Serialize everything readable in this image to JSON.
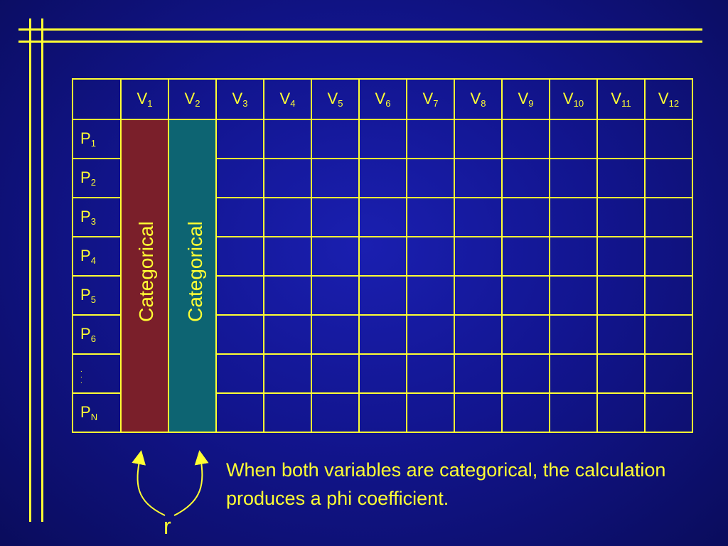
{
  "columns": [
    {
      "base": "V",
      "sub": "1"
    },
    {
      "base": "V",
      "sub": "2"
    },
    {
      "base": "V",
      "sub": "3"
    },
    {
      "base": "V",
      "sub": "4"
    },
    {
      "base": "V",
      "sub": "5"
    },
    {
      "base": "V",
      "sub": "6"
    },
    {
      "base": "V",
      "sub": "7"
    },
    {
      "base": "V",
      "sub": "8"
    },
    {
      "base": "V",
      "sub": "9"
    },
    {
      "base": "V",
      "sub": "10"
    },
    {
      "base": "V",
      "sub": "11"
    },
    {
      "base": "V",
      "sub": "12"
    }
  ],
  "rows": [
    {
      "base": "P",
      "sub": "1"
    },
    {
      "base": "P",
      "sub": "2"
    },
    {
      "base": "P",
      "sub": "3"
    },
    {
      "base": "P",
      "sub": "4"
    },
    {
      "base": "P",
      "sub": "5"
    },
    {
      "base": "P",
      "sub": "6"
    },
    {
      "base": ".",
      "sub": "",
      "ellipsis": true
    },
    {
      "base": "P",
      "sub": "N"
    }
  ],
  "highlight": {
    "col1_label": "Categorical",
    "col2_label": "Categorical",
    "col1_color": "#7a1f2a",
    "col2_color": "#0d6472"
  },
  "note": "When both variables are categorical, the calculation produces a phi coefficient.",
  "r_label": "r",
  "colors": {
    "background": "#12158f",
    "line": "#ffff33"
  }
}
